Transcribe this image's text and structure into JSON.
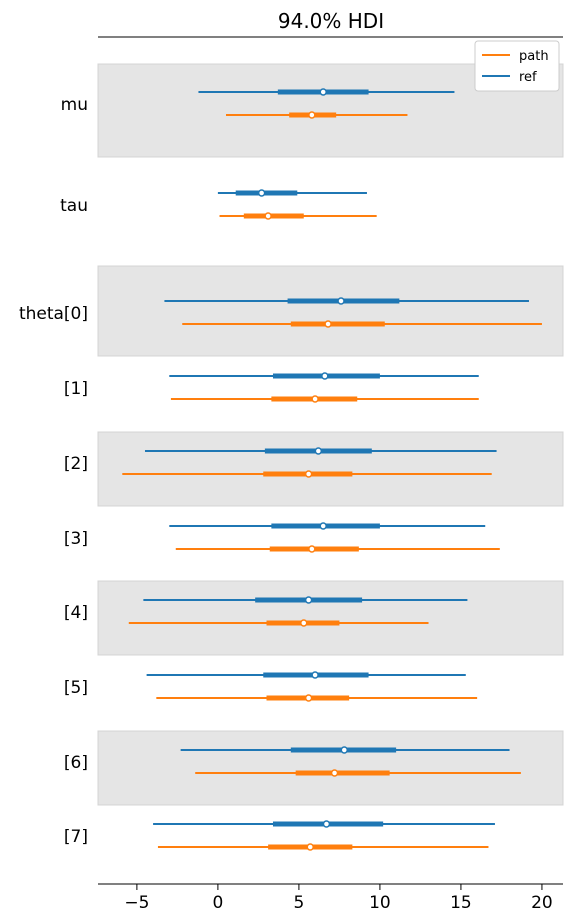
{
  "chart_data": {
    "type": "forest",
    "title": "94.0% HDI",
    "xlabel": "",
    "ylabel": "",
    "xlim": [
      -7.4,
      21.3
    ],
    "xticks": [
      -5,
      0,
      5,
      10,
      15,
      20
    ],
    "xtick_labels": [
      "−5",
      "0",
      "5",
      "10",
      "15",
      "20"
    ],
    "legend": {
      "placement": "top-right",
      "entries": [
        "path",
        "ref"
      ]
    },
    "colors": {
      "path": "#ff7f0e",
      "ref": "#1f77b4",
      "band": "#e5e5e5",
      "band_border": "#d4d4d4"
    },
    "rows": [
      {
        "label": "mu",
        "shaded": true,
        "ref": {
          "hdi": [
            -1.2,
            14.6
          ],
          "iqr": [
            3.7,
            9.3
          ],
          "mean": 6.5
        },
        "path": {
          "hdi": [
            0.5,
            11.7
          ],
          "iqr": [
            4.4,
            7.3
          ],
          "mean": 5.8
        }
      },
      {
        "label": "tau",
        "shaded": false,
        "ref": {
          "hdi": [
            0.0,
            9.2
          ],
          "iqr": [
            1.1,
            4.9
          ],
          "mean": 2.7
        },
        "path": {
          "hdi": [
            0.1,
            9.8
          ],
          "iqr": [
            1.6,
            5.3
          ],
          "mean": 3.1
        }
      },
      {
        "label": "theta[0]",
        "shaded": true,
        "ref": {
          "hdi": [
            -3.3,
            19.2
          ],
          "iqr": [
            4.3,
            11.2
          ],
          "mean": 7.6
        },
        "path": {
          "hdi": [
            -2.2,
            20.0
          ],
          "iqr": [
            4.5,
            10.3
          ],
          "mean": 6.8
        }
      },
      {
        "label": "[1]",
        "shaded": false,
        "ref": {
          "hdi": [
            -3.0,
            16.1
          ],
          "iqr": [
            3.4,
            10.0
          ],
          "mean": 6.6
        },
        "path": {
          "hdi": [
            -2.9,
            16.1
          ],
          "iqr": [
            3.3,
            8.6
          ],
          "mean": 6.0
        }
      },
      {
        "label": "[2]",
        "shaded": true,
        "ref": {
          "hdi": [
            -4.5,
            17.2
          ],
          "iqr": [
            2.9,
            9.5
          ],
          "mean": 6.2
        },
        "path": {
          "hdi": [
            -5.9,
            16.9
          ],
          "iqr": [
            2.8,
            8.3
          ],
          "mean": 5.6
        }
      },
      {
        "label": "[3]",
        "shaded": false,
        "ref": {
          "hdi": [
            -3.0,
            16.5
          ],
          "iqr": [
            3.3,
            10.0
          ],
          "mean": 6.5
        },
        "path": {
          "hdi": [
            -2.6,
            17.4
          ],
          "iqr": [
            3.2,
            8.7
          ],
          "mean": 5.8
        }
      },
      {
        "label": "[4]",
        "shaded": true,
        "ref": {
          "hdi": [
            -4.6,
            15.4
          ],
          "iqr": [
            2.3,
            8.9
          ],
          "mean": 5.6
        },
        "path": {
          "hdi": [
            -5.5,
            13.0
          ],
          "iqr": [
            3.0,
            7.5
          ],
          "mean": 5.3
        }
      },
      {
        "label": "[5]",
        "shaded": false,
        "ref": {
          "hdi": [
            -4.4,
            15.3
          ],
          "iqr": [
            2.8,
            9.3
          ],
          "mean": 6.0
        },
        "path": {
          "hdi": [
            -3.8,
            16.0
          ],
          "iqr": [
            3.0,
            8.1
          ],
          "mean": 5.6
        }
      },
      {
        "label": "[6]",
        "shaded": true,
        "ref": {
          "hdi": [
            -2.3,
            18.0
          ],
          "iqr": [
            4.5,
            11.0
          ],
          "mean": 7.8
        },
        "path": {
          "hdi": [
            -1.4,
            18.7
          ],
          "iqr": [
            4.8,
            10.6
          ],
          "mean": 7.2
        }
      },
      {
        "label": "[7]",
        "shaded": false,
        "ref": {
          "hdi": [
            -4.0,
            17.1
          ],
          "iqr": [
            3.4,
            10.2
          ],
          "mean": 6.7
        },
        "path": {
          "hdi": [
            -3.7,
            16.7
          ],
          "iqr": [
            3.1,
            8.3
          ],
          "mean": 5.7
        }
      }
    ]
  }
}
